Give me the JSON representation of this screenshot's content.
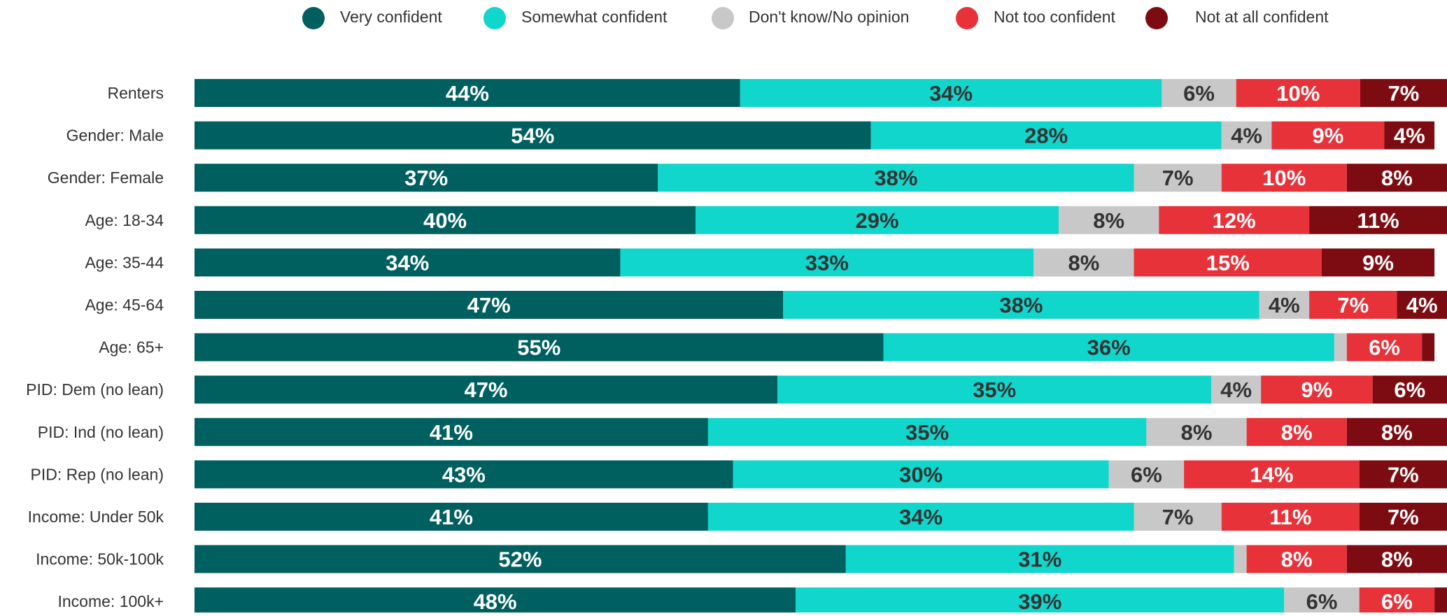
{
  "chart_data": {
    "type": "bar",
    "orientation": "horizontal",
    "stacked": true,
    "grid": false,
    "legend_position": "top",
    "title": "",
    "xlabel": "",
    "ylabel": "",
    "xlim": [
      0,
      100
    ],
    "categories": [
      "Renters",
      "Gender: Male",
      "Gender: Female",
      "Age: 18-34",
      "Age: 35-44",
      "Age: 45-64",
      "Age: 65+",
      "PID: Dem (no lean)",
      "PID: Ind (no lean)",
      "PID: Rep (no lean)",
      "Income: Under 50k",
      "Income: 50k-100k",
      "Income: 100k+"
    ],
    "series": [
      {
        "name": "Very confident",
        "color": "#005f5f",
        "label_color": "#ffffff",
        "values": [
          44,
          54,
          37,
          40,
          34,
          47,
          55,
          47,
          41,
          43,
          41,
          52,
          48
        ],
        "labels": [
          "44%",
          "54%",
          "37%",
          "40%",
          "34%",
          "47%",
          "55%",
          "47%",
          "41%",
          "43%",
          "41%",
          "52%",
          "48%"
        ]
      },
      {
        "name": "Somewhat confident",
        "color": "#10d6cc",
        "label_color": "#333333",
        "values": [
          34,
          28,
          38,
          29,
          33,
          38,
          36,
          35,
          35,
          30,
          34,
          31,
          39
        ],
        "labels": [
          "34%",
          "28%",
          "38%",
          "29%",
          "33%",
          "38%",
          "36%",
          "35%",
          "35%",
          "30%",
          "34%",
          "31%",
          "39%"
        ]
      },
      {
        "name": "Don't know/No opinion",
        "color": "#c8c8c8",
        "label_color": "#333333",
        "values": [
          6,
          4,
          7,
          8,
          8,
          4,
          1,
          4,
          8,
          6,
          7,
          1,
          6
        ],
        "labels": [
          "6%",
          "4%",
          "7%",
          "8%",
          "8%",
          "4%",
          "",
          "4%",
          "8%",
          "6%",
          "7%",
          "",
          "6%"
        ]
      },
      {
        "name": "Not too confident",
        "color": "#e8323a",
        "label_color": "#ffffff",
        "values": [
          10,
          9,
          10,
          12,
          15,
          7,
          6,
          9,
          8,
          14,
          11,
          8,
          6
        ],
        "labels": [
          "10%",
          "9%",
          "10%",
          "12%",
          "15%",
          "7%",
          "6%",
          "9%",
          "8%",
          "14%",
          "11%",
          "8%",
          "6%"
        ]
      },
      {
        "name": "Not at all confident",
        "color": "#7d0c12",
        "label_color": "#ffffff",
        "values": [
          7,
          4,
          8,
          11,
          9,
          4,
          1,
          6,
          8,
          7,
          7,
          8,
          1
        ],
        "labels": [
          "7%",
          "4%",
          "8%",
          "11%",
          "9%",
          "4%",
          "",
          "6%",
          "8%",
          "7%",
          "7%",
          "8%",
          ""
        ]
      }
    ]
  }
}
